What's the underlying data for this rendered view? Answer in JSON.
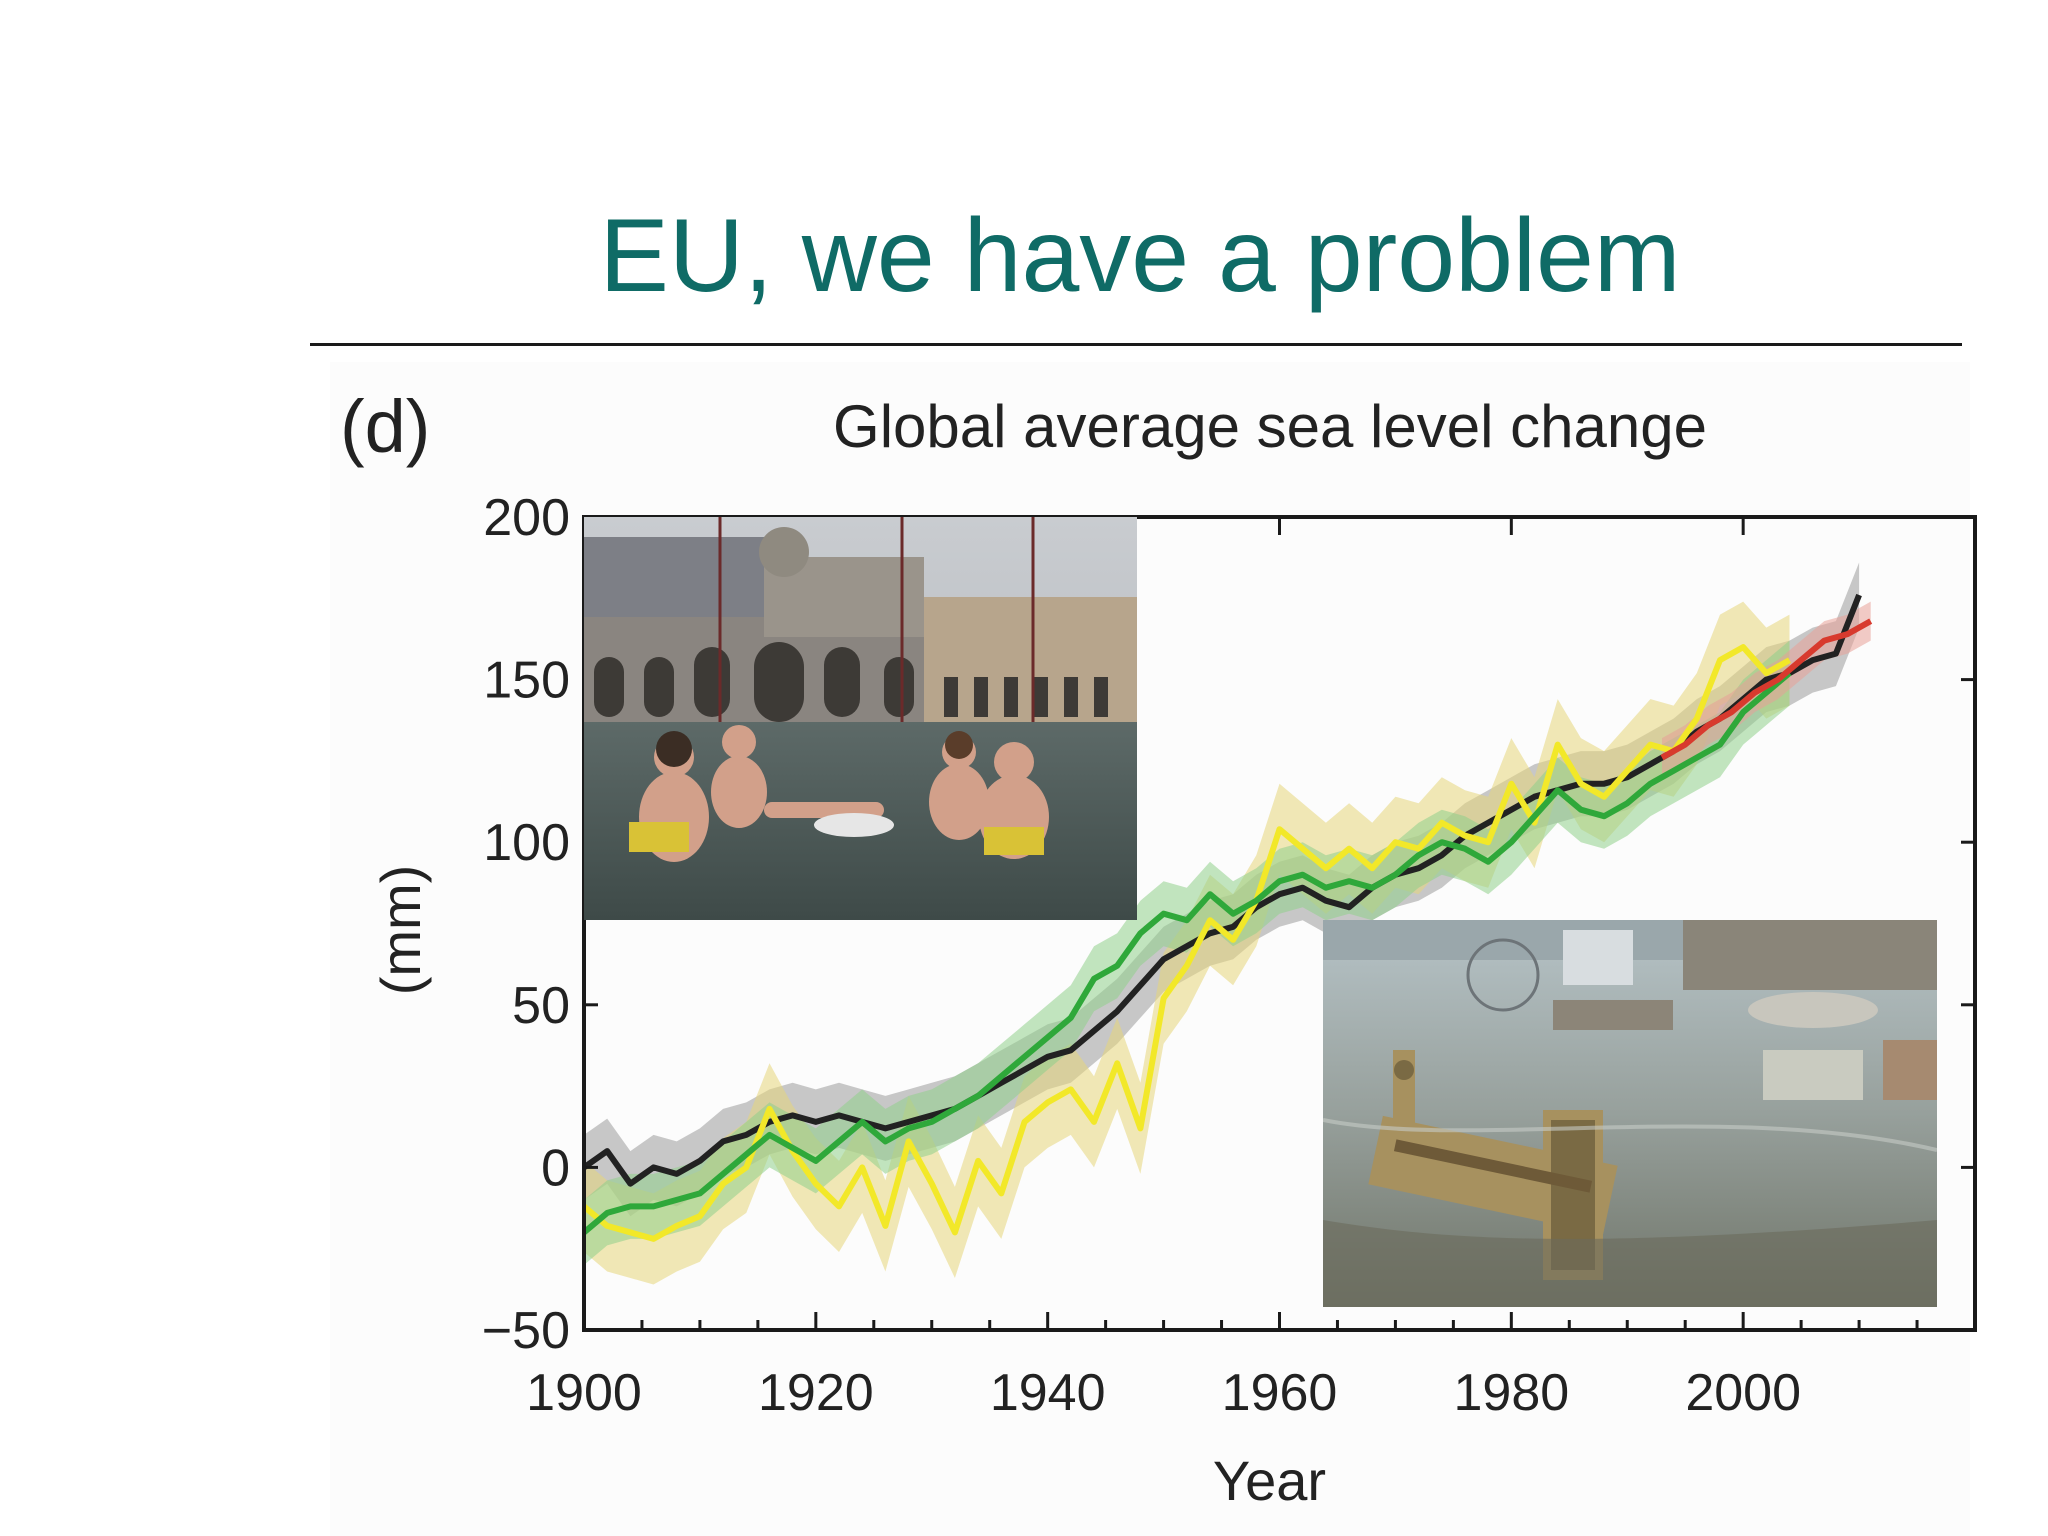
{
  "slide": {
    "title": "EU, we have a problem",
    "title_color": "#0f6b66"
  },
  "figure": {
    "panel_label": "(d)"
  },
  "photos": [
    {
      "name": "venice-flood-photo",
      "description_icon": "photo-flooded-square"
    },
    {
      "name": "london-flood-photo",
      "description_icon": "photo-flooded-city"
    }
  ],
  "chart_data": {
    "type": "line",
    "title": "Global average sea level change",
    "xlabel": "Year",
    "ylabel": "(mm)",
    "xlim": [
      1900,
      2020
    ],
    "ylim": [
      -50,
      200
    ],
    "xticks": [
      1900,
      1920,
      1940,
      1960,
      1980,
      2000
    ],
    "yticks": [
      -50,
      0,
      50,
      100,
      150,
      200
    ],
    "grid": false,
    "legend": "none",
    "series": [
      {
        "color": "#222222",
        "band_color": "#9a9a9a",
        "x": [
          1900,
          1902,
          1904,
          1906,
          1908,
          1910,
          1912,
          1914,
          1916,
          1918,
          1920,
          1922,
          1924,
          1926,
          1928,
          1930,
          1932,
          1934,
          1936,
          1938,
          1940,
          1942,
          1944,
          1946,
          1948,
          1950,
          1952,
          1954,
          1956,
          1958,
          1960,
          1962,
          1964,
          1966,
          1968,
          1970,
          1972,
          1974,
          1976,
          1978,
          1980,
          1982,
          1984,
          1986,
          1988,
          1990,
          1992,
          1994,
          1996,
          1998,
          2000,
          2002,
          2004,
          2006,
          2008,
          2010
        ],
        "values": [
          0,
          5,
          -5,
          0,
          -2,
          2,
          8,
          10,
          14,
          16,
          14,
          16,
          14,
          12,
          14,
          16,
          18,
          22,
          26,
          30,
          34,
          36,
          42,
          48,
          56,
          64,
          68,
          72,
          74,
          80,
          84,
          86,
          82,
          80,
          86,
          90,
          92,
          96,
          102,
          106,
          110,
          114,
          116,
          118,
          118,
          120,
          124,
          128,
          134,
          138,
          144,
          150,
          152,
          156,
          158,
          176
        ]
      },
      {
        "color": "#f2e829",
        "band_color": "#e6d67a",
        "x": [
          1900,
          1902,
          1904,
          1906,
          1908,
          1910,
          1912,
          1914,
          1916,
          1918,
          1920,
          1922,
          1924,
          1926,
          1928,
          1930,
          1932,
          1934,
          1936,
          1938,
          1940,
          1942,
          1944,
          1946,
          1948,
          1950,
          1952,
          1954,
          1956,
          1958,
          1960,
          1962,
          1964,
          1966,
          1968,
          1970,
          1972,
          1974,
          1976,
          1978,
          1980,
          1982,
          1984,
          1986,
          1988,
          1990,
          1992,
          1994,
          1996,
          1998,
          2000,
          2002,
          2004
        ],
        "values": [
          -12,
          -18,
          -20,
          -22,
          -18,
          -15,
          -5,
          0,
          18,
          5,
          -5,
          -12,
          0,
          -18,
          8,
          -5,
          -20,
          2,
          -8,
          14,
          20,
          24,
          14,
          32,
          12,
          52,
          62,
          76,
          70,
          82,
          104,
          98,
          92,
          98,
          92,
          100,
          98,
          106,
          102,
          100,
          118,
          106,
          130,
          118,
          114,
          122,
          130,
          128,
          138,
          156,
          160,
          152,
          156
        ]
      },
      {
        "color": "#2fa83a",
        "band_color": "#8fd08a",
        "x": [
          1900,
          1902,
          1904,
          1906,
          1908,
          1910,
          1912,
          1914,
          1916,
          1918,
          1920,
          1922,
          1924,
          1926,
          1928,
          1930,
          1932,
          1934,
          1936,
          1938,
          1940,
          1942,
          1944,
          1946,
          1948,
          1950,
          1952,
          1954,
          1956,
          1958,
          1960,
          1962,
          1964,
          1966,
          1968,
          1970,
          1972,
          1974,
          1976,
          1978,
          1980,
          1982,
          1984,
          1986,
          1988,
          1990,
          1992,
          1994,
          1996,
          1998,
          2000,
          2002,
          2004
        ],
        "values": [
          -20,
          -14,
          -12,
          -12,
          -10,
          -8,
          -2,
          4,
          10,
          6,
          2,
          8,
          14,
          8,
          12,
          14,
          18,
          22,
          28,
          34,
          40,
          46,
          58,
          62,
          72,
          78,
          76,
          84,
          78,
          82,
          88,
          90,
          86,
          88,
          86,
          90,
          96,
          100,
          98,
          94,
          100,
          108,
          116,
          110,
          108,
          112,
          118,
          122,
          126,
          130,
          140,
          146,
          152
        ]
      },
      {
        "color": "#d83a2e",
        "band_color": "#e8a098",
        "x": [
          1993,
          1995,
          1997,
          1999,
          2001,
          2003,
          2005,
          2007,
          2009,
          2011
        ],
        "values": [
          126,
          130,
          136,
          140,
          146,
          150,
          156,
          162,
          164,
          168
        ]
      }
    ]
  }
}
